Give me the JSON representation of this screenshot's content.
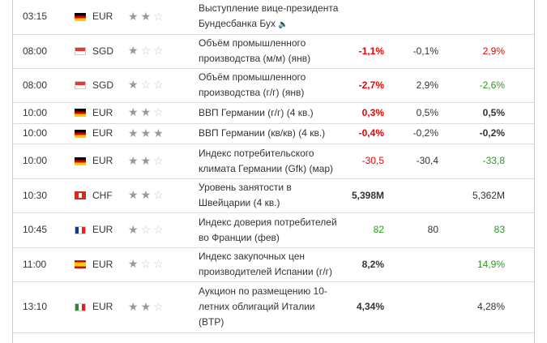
{
  "table": {
    "rows": [
      {
        "time": "03:15",
        "currency": "EUR",
        "importance": 2,
        "event": "Выступление вице-президента Бундесбанка Бух"
      },
      {
        "time": "08:00",
        "currency": "SGD",
        "importance": 1,
        "event": "Объём промышленного производства (м/м) (янв)",
        "actual": "-1,1%",
        "forecast": "-0,1%",
        "previous": "2,9%"
      },
      {
        "time": "08:00",
        "currency": "SGD",
        "importance": 1,
        "event": "Объём промышленного производства (г/г) (янв)",
        "actual": "-2,7%",
        "forecast": "2,9%",
        "previous": "-2,6%"
      },
      {
        "time": "10:00",
        "currency": "EUR",
        "importance": 2,
        "event": "ВВП Германии (г/г) (4 кв.)",
        "actual": "0,3%",
        "forecast": "0,5%",
        "previous": "0,5%"
      },
      {
        "time": "10:00",
        "currency": "EUR",
        "importance": 3,
        "event": "ВВП Германии (кв/кв) (4 кв.)",
        "actual": "-0,4%",
        "forecast": "-0,2%",
        "previous": "-0,2%"
      },
      {
        "time": "10:00",
        "currency": "EUR",
        "importance": 2,
        "event": "Индекс потребительского климата Германии (Gfk) (мар)",
        "actual": "-30,5",
        "forecast": "-30,4",
        "previous": "-33,8"
      },
      {
        "time": "10:30",
        "currency": "CHF",
        "importance": 2,
        "event": "Уровень занятости в Швейцарии (4 кв.)",
        "actual": "5,398M",
        "previous": "5,362M"
      },
      {
        "time": "10:45",
        "currency": "EUR",
        "importance": 1,
        "event": "Индекс доверия потребителей во Франции (фев)",
        "actual": "82",
        "forecast": "80",
        "previous": "83"
      },
      {
        "time": "11:00",
        "currency": "EUR",
        "importance": 1,
        "event": "Индекс закупочных цен производителей Испании (г/г)",
        "actual": "8,2%",
        "previous": "14,9%"
      },
      {
        "time": "13:10",
        "currency": "EUR",
        "importance": 2,
        "event": "Аукцион по размещению 10-летних облигаций Италии (BTP)",
        "actual": "4,34%",
        "previous": "4,28%"
      }
    ]
  }
}
